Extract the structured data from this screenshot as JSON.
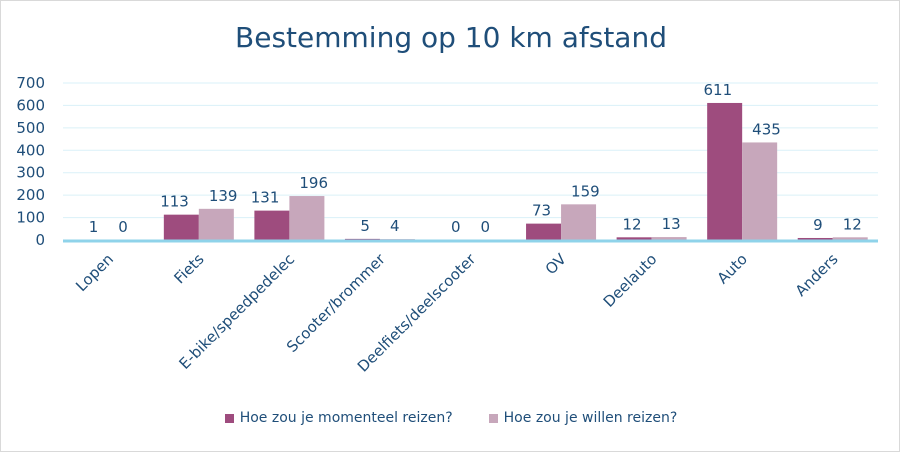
{
  "chart_data": {
    "type": "bar",
    "title": "Bestemming op 10 km afstand",
    "categories": [
      "Lopen",
      "Fiets",
      "E-bike/speedpedelec",
      "Scooter/brommer",
      "Deelfiets/deelscooter",
      "OV",
      "Deelauto",
      "Auto",
      "Anders"
    ],
    "series": [
      {
        "name": "Hoe zou je momenteel reizen?",
        "values": [
          1,
          113,
          131,
          5,
          0,
          73,
          12,
          611,
          9
        ],
        "color": "#9e4c7e"
      },
      {
        "name": "Hoe zou je willen reizen?",
        "values": [
          0,
          139,
          196,
          4,
          0,
          159,
          13,
          435,
          12
        ],
        "color": "#c7a7bb"
      }
    ],
    "ylim": [
      0,
      700
    ],
    "yticks": [
      "0",
      "100",
      "200",
      "300",
      "400",
      "500",
      "600",
      "700"
    ],
    "grid": true,
    "legend_position": "bottom",
    "axis_color": "#8fd3ea",
    "text_color": "#1f4e79"
  }
}
